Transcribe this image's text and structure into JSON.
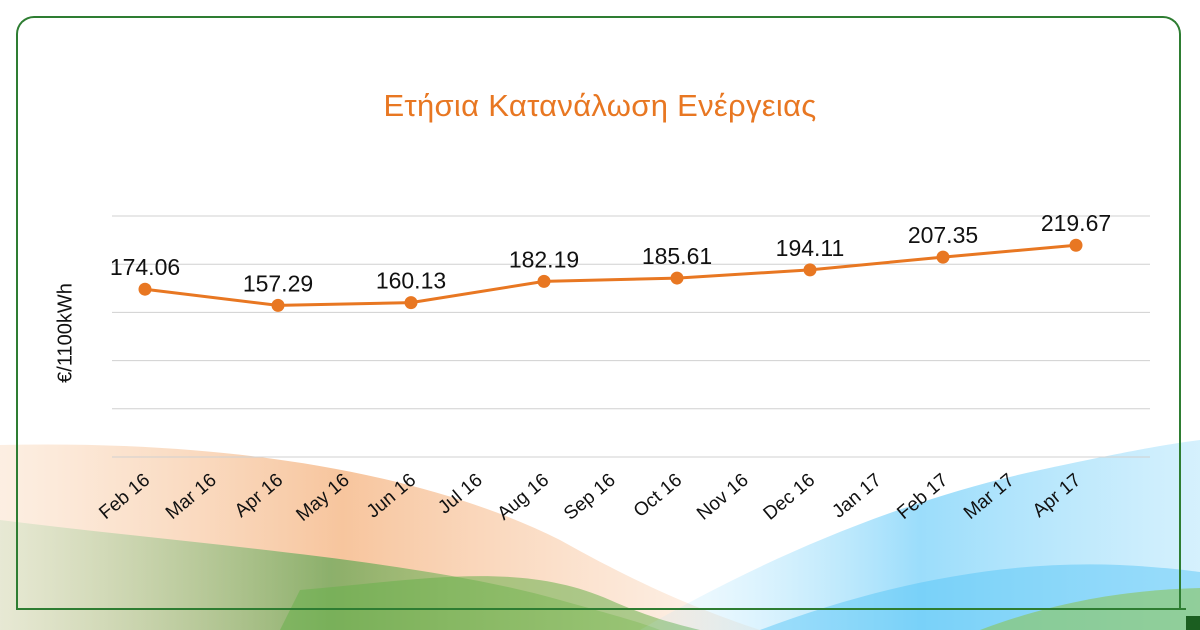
{
  "colors": {
    "accent": "#e87722",
    "frame": "#2e7d32",
    "grid": "#d0d0d0",
    "text": "#111111"
  },
  "chart_data": {
    "type": "line",
    "title": "Ετήσια Κατανάλωση Ενέργειας",
    "xlabel": "",
    "ylabel": "€/1100kWh",
    "categories": [
      "Feb 16",
      "Mar 16",
      "Apr 16",
      "May 16",
      "Jun 16",
      "Jul 16",
      "Aug 16",
      "Sep 16",
      "Oct 16",
      "Nov 16",
      "Dec 16",
      "Jan 17",
      "Feb 17",
      "Mar 17",
      "Apr 17"
    ],
    "points": [
      {
        "x": "Feb 16",
        "y": 174.06,
        "label": "174.06"
      },
      {
        "x": "Apr 16",
        "y": 157.29,
        "label": "157.29"
      },
      {
        "x": "Jun 16",
        "y": 160.13,
        "label": "160.13"
      },
      {
        "x": "Aug 16",
        "y": 182.19,
        "label": "182.19"
      },
      {
        "x": "Oct 16",
        "y": 185.61,
        "label": "185.61"
      },
      {
        "x": "Dec 16",
        "y": 194.11,
        "label": "194.11"
      },
      {
        "x": "Feb 17",
        "y": 207.35,
        "label": "207.35"
      },
      {
        "x": "Apr 17",
        "y": 219.67,
        "label": "219.67"
      }
    ],
    "ylim": [
      0,
      250
    ],
    "grid": true,
    "legend": "none"
  }
}
